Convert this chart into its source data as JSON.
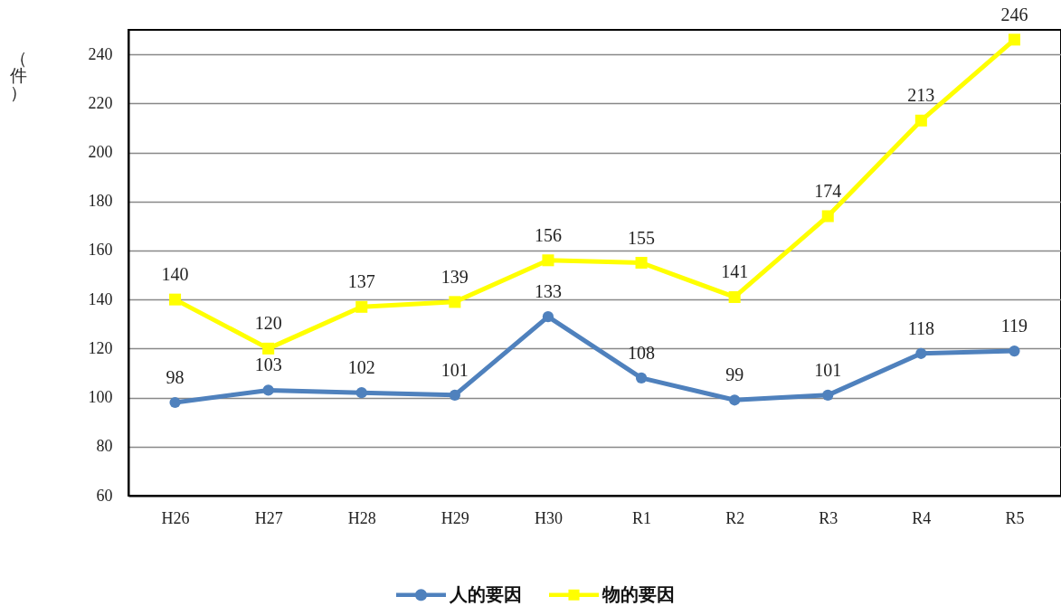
{
  "chart_data": {
    "type": "line",
    "ylabel": "（件）",
    "categories": [
      "H26",
      "H27",
      "H28",
      "H29",
      "H30",
      "R1",
      "R2",
      "R3",
      "R4",
      "R5"
    ],
    "series": [
      {
        "name": "人的要因",
        "color": "#4f81bd",
        "marker": "circle",
        "values": [
          98,
          103,
          102,
          101,
          133,
          108,
          99,
          101,
          118,
          119
        ]
      },
      {
        "name": "物的要因",
        "color": "#ffff00",
        "marker": "square",
        "values": [
          140,
          120,
          137,
          139,
          156,
          155,
          141,
          174,
          213,
          246
        ]
      }
    ],
    "ylim": [
      60,
      250
    ],
    "yticks": [
      60,
      80,
      100,
      120,
      140,
      160,
      180,
      200,
      220,
      240
    ],
    "grid": "y",
    "legend": "bottom",
    "data_labels": true,
    "line_style": "solid"
  }
}
